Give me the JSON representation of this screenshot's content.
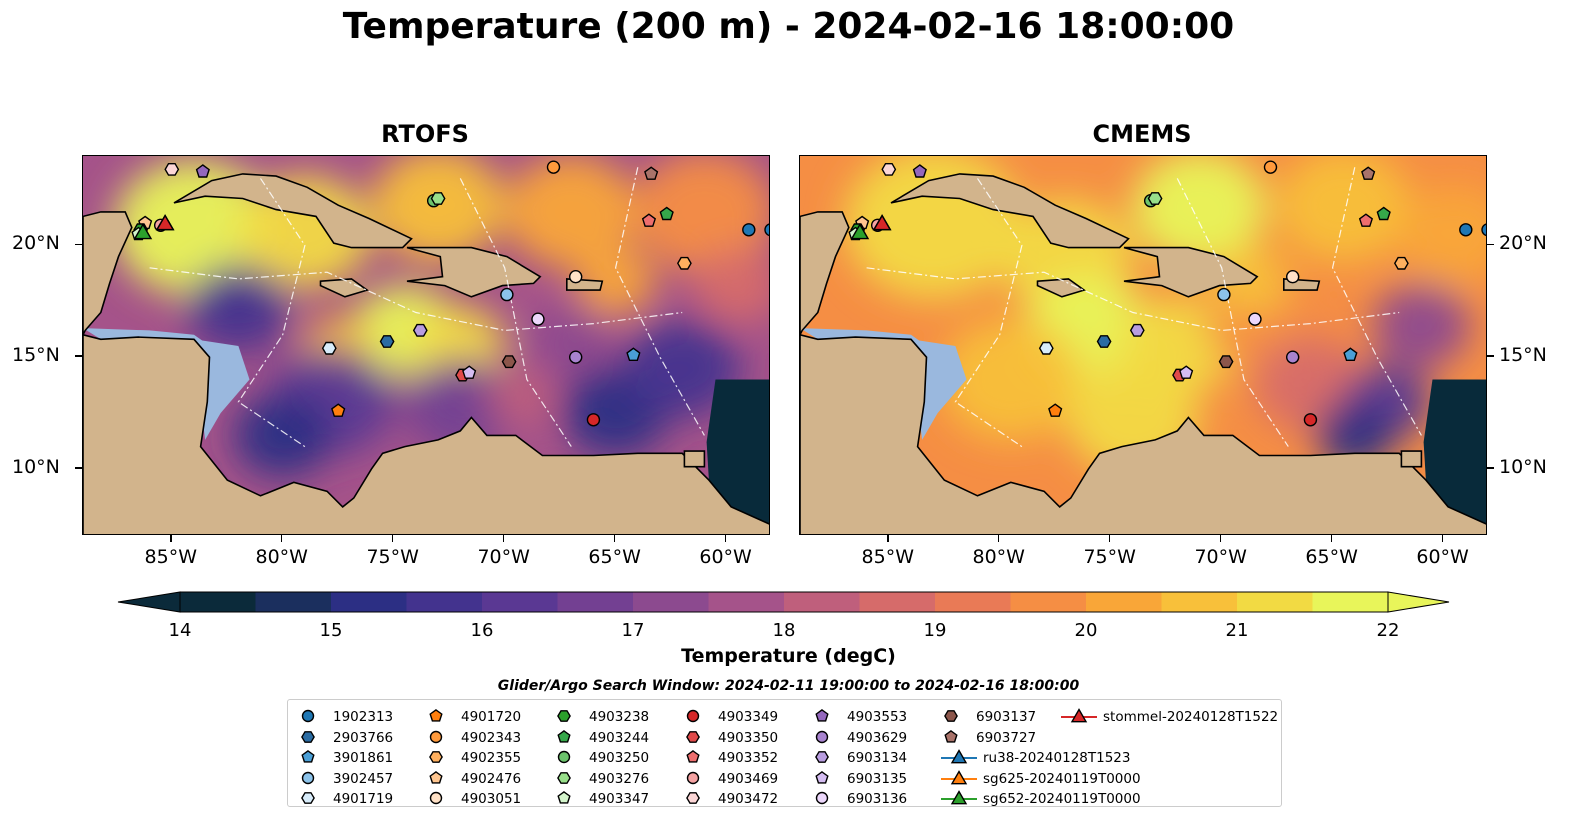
{
  "title": "Temperature (200 m) - 2024-02-16 18:00:00",
  "panels": [
    {
      "title": "RTOFS"
    },
    {
      "title": "CMEMS"
    }
  ],
  "colors": {
    "land": "#d2b48c",
    "shallow_water": "#9ab8de",
    "outside_domain": "#082a3a",
    "colormap": [
      "#0b2a3a",
      "#1b2f5e",
      "#2c2f84",
      "#43338e",
      "#5a3893",
      "#734092",
      "#8c4a8f",
      "#a5538a",
      "#bf5f7c",
      "#d66b6a",
      "#e97a56",
      "#f58e44",
      "#f9a638",
      "#f8c03a",
      "#f2da43",
      "#e8f55a"
    ]
  },
  "colorbar": {
    "label": "Temperature (degC)",
    "ticks": [
      "14",
      "15",
      "16",
      "17",
      "18",
      "19",
      "20",
      "21",
      "22"
    ],
    "min": 14,
    "max": 22,
    "extend": "both"
  },
  "search_window": "Glider/Argo Search Window: 2024-02-11 19:00:00 to 2024-02-16 18:00:00",
  "axes": {
    "lon_ticks": [
      "85°W",
      "80°W",
      "75°W",
      "70°W",
      "65°W",
      "60°W"
    ],
    "lon_values": [
      -85,
      -80,
      -75,
      -70,
      -65,
      -60
    ],
    "lat_ticks": [
      "20°N",
      "15°N",
      "10°N"
    ],
    "lat_values": [
      20,
      15,
      10
    ],
    "lon_range": [
      -89,
      -58
    ],
    "lat_range": [
      7,
      24
    ]
  },
  "chart_data": {
    "type": "scatter",
    "title": "Temperature (200 m) - 2024-02-16 18:00:00",
    "xlabel": "",
    "ylabel": "",
    "xlim": [
      -89,
      -58
    ],
    "ylim": [
      7,
      24
    ],
    "series": [
      {
        "name": "1902313",
        "marker": "circle",
        "color": "#1f77b4",
        "x": [
          -58,
          -59.0
        ],
        "y": [
          20.7,
          20.7
        ]
      },
      {
        "name": "2903766",
        "marker": "hexagon",
        "color": "#2b6ca3",
        "x": [
          -75.3
        ],
        "y": [
          15.7
        ]
      },
      {
        "name": "3901861",
        "marker": "pentagon",
        "color": "#4a9fd6",
        "x": [
          -64.2
        ],
        "y": [
          15.1
        ]
      },
      {
        "name": "3902457",
        "marker": "circle",
        "color": "#8cc3ea",
        "x": [
          -69.9
        ],
        "y": [
          17.8
        ]
      },
      {
        "name": "4901719",
        "marker": "hexagon",
        "color": "#d8ecfa",
        "x": [
          -77.9
        ],
        "y": [
          15.4
        ]
      },
      {
        "name": "4901720",
        "marker": "pentagon",
        "color": "#ff7f0e",
        "x": [
          -77.5
        ],
        "y": [
          12.6
        ]
      },
      {
        "name": "4902343",
        "marker": "circle",
        "color": "#ff9a3c",
        "x": [
          -67.8
        ],
        "y": [
          23.5
        ]
      },
      {
        "name": "4902355",
        "marker": "hexagon",
        "color": "#ffb05f",
        "x": [
          -61.9
        ],
        "y": [
          19.2
        ]
      },
      {
        "name": "4902476",
        "marker": "pentagon",
        "color": "#ffc690",
        "x": [
          -86.2
        ],
        "y": [
          21.0
        ]
      },
      {
        "name": "4903051",
        "marker": "circle",
        "color": "#ffe1c6",
        "x": [
          -66.8
        ],
        "y": [
          18.6
        ]
      },
      {
        "name": "4903238",
        "marker": "hexagon",
        "color": "#2ca02c",
        "x": [
          -86.4
        ],
        "y": [
          20.7
        ]
      },
      {
        "name": "4903244",
        "marker": "pentagon",
        "color": "#36a84a",
        "x": [
          -62.7
        ],
        "y": [
          21.4
        ]
      },
      {
        "name": "4903250",
        "marker": "circle",
        "color": "#6cc36c",
        "x": [
          -73.2
        ],
        "y": [
          22.0
        ]
      },
      {
        "name": "4903276",
        "marker": "hexagon",
        "color": "#98df8a",
        "x": [
          -73.0
        ],
        "y": [
          22.1
        ]
      },
      {
        "name": "4903347",
        "marker": "pentagon",
        "color": "#d4f5cc",
        "x": [
          -86.5
        ],
        "y": [
          20.5
        ]
      },
      {
        "name": "4903349",
        "marker": "circle",
        "color": "#d62728",
        "x": [
          -66.0
        ],
        "y": [
          12.2
        ]
      },
      {
        "name": "4903350",
        "marker": "hexagon",
        "color": "#e04a4a",
        "x": [
          -71.9
        ],
        "y": [
          14.2
        ]
      },
      {
        "name": "4903352",
        "marker": "pentagon",
        "color": "#ee6e6e",
        "x": [
          -63.5
        ],
        "y": [
          21.1
        ]
      },
      {
        "name": "4903469",
        "marker": "circle",
        "color": "#f5a3a3",
        "x": [
          -85.5
        ],
        "y": [
          20.9
        ]
      },
      {
        "name": "4903472",
        "marker": "hexagon",
        "color": "#fbd6d6",
        "x": [
          -85.0
        ],
        "y": [
          23.4
        ]
      },
      {
        "name": "4903553",
        "marker": "pentagon",
        "color": "#9467bd",
        "x": [
          -83.6
        ],
        "y": [
          23.3
        ]
      },
      {
        "name": "4903629",
        "marker": "circle",
        "color": "#a883cf",
        "x": [
          -66.8
        ],
        "y": [
          15.0
        ]
      },
      {
        "name": "6903134",
        "marker": "hexagon",
        "color": "#b99de0",
        "x": [
          -73.8
        ],
        "y": [
          16.2
        ]
      },
      {
        "name": "6903135",
        "marker": "pentagon",
        "color": "#d5bdf2",
        "x": [
          -71.6
        ],
        "y": [
          14.3
        ]
      },
      {
        "name": "6903136",
        "marker": "circle",
        "color": "#ecd7fb",
        "x": [
          -68.5
        ],
        "y": [
          16.7
        ]
      },
      {
        "name": "6903137",
        "marker": "hexagon",
        "color": "#8c564b",
        "x": [
          -69.8
        ],
        "y": [
          14.8
        ]
      },
      {
        "name": "6903727",
        "marker": "pentagon",
        "color": "#a9736a",
        "x": [
          -63.4
        ],
        "y": [
          23.2
        ]
      },
      {
        "name": "ru38-20240128T1523",
        "marker": "triangle",
        "color": "#1f77b4",
        "x": [
          -85.3
        ],
        "y": [
          21.0
        ]
      },
      {
        "name": "sg625-20240119T0000",
        "marker": "triangle",
        "color": "#ff7f0e",
        "x": [
          -85.3
        ],
        "y": [
          21.0
        ]
      },
      {
        "name": "sg652-20240119T0000",
        "marker": "triangle",
        "color": "#2ca02c",
        "x": [
          -86.3
        ],
        "y": [
          20.6
        ]
      },
      {
        "name": "stommel-20240128T1522",
        "marker": "triangle",
        "color": "#d62728",
        "x": [
          -85.3
        ],
        "y": [
          21.0
        ]
      }
    ],
    "legend": "bottom"
  }
}
